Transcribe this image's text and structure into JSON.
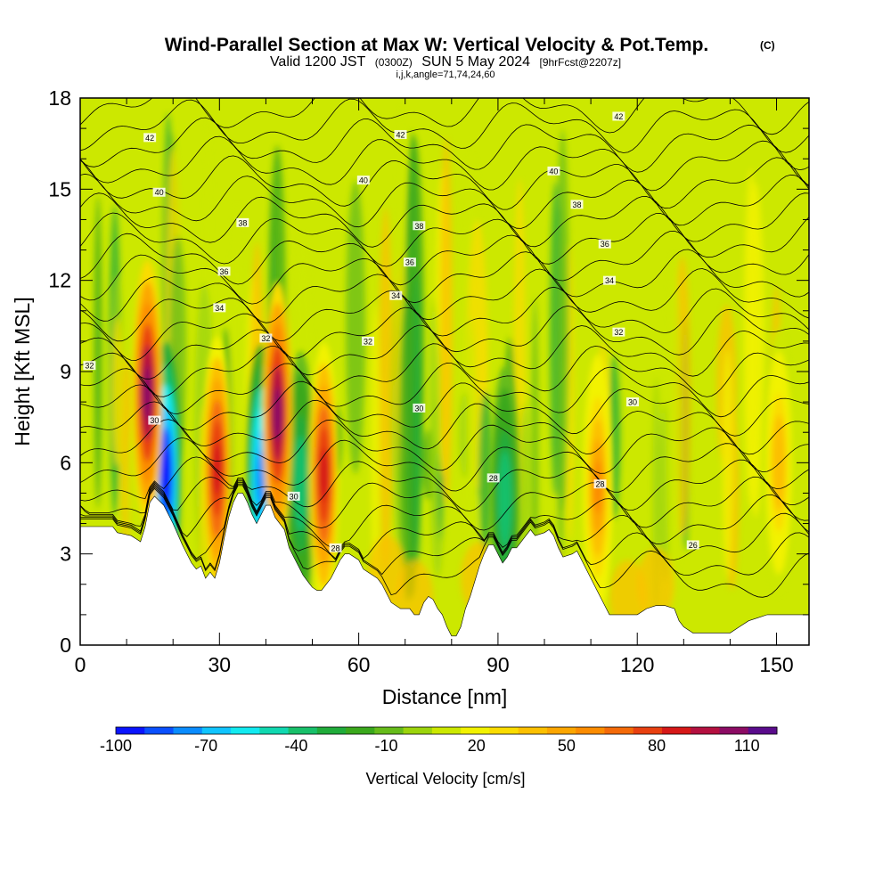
{
  "header": {
    "title": "Wind-Parallel Section at Max W: Vertical Velocity & Pot.Temp.",
    "copyright": "(C)",
    "valid_prefix": "Valid 1200 JST",
    "valid_utc": "(0300Z)",
    "valid_date": "SUN 5 May 2024",
    "forecast": "[9hrFcst@2207z]",
    "indices": "i,j,k,angle=71,74,24,60"
  },
  "chart_data": {
    "type": "heatmap",
    "xlabel": "Distance [nm]",
    "ylabel": "Height [Kft MSL]",
    "xlim": [
      0,
      157
    ],
    "ylim": [
      0,
      18
    ],
    "x_ticks": [
      0,
      30,
      60,
      90,
      120,
      150
    ],
    "y_ticks": [
      0,
      3,
      6,
      9,
      12,
      15,
      18
    ],
    "x_tick_labels": [
      "0",
      "30",
      "60",
      "90",
      "120",
      "150"
    ],
    "y_tick_labels": [
      "0",
      "3",
      "6",
      "9",
      "12",
      "15",
      "18"
    ],
    "colorbar": {
      "title": "Vertical Velocity [cm/s]",
      "min": -100,
      "max": 120,
      "step": 10,
      "tick_labels": [
        "-100",
        "-70",
        "-40",
        "-10",
        "20",
        "50",
        "80",
        "110"
      ],
      "tick_values": [
        -100,
        -70,
        -40,
        -10,
        20,
        50,
        80,
        110
      ],
      "colors": [
        "#0a14ff",
        "#0a50ff",
        "#0a8cff",
        "#10c4ff",
        "#12eaf0",
        "#10d8b0",
        "#18c06a",
        "#20ac3a",
        "#3aa81c",
        "#66bc1a",
        "#9cd40c",
        "#cce800",
        "#f2f200",
        "#fadc00",
        "#fcc000",
        "#fca600",
        "#fc8c00",
        "#f46a08",
        "#e84010",
        "#d61818",
        "#b41040",
        "#8c0c64",
        "#5a0c8c"
      ]
    },
    "terrain": [
      [
        0,
        3.9
      ],
      [
        7,
        3.9
      ],
      [
        8,
        3.7
      ],
      [
        11,
        3.6
      ],
      [
        13,
        3.4
      ],
      [
        14,
        3.9
      ],
      [
        15,
        4.7
      ],
      [
        16,
        4.9
      ],
      [
        18,
        4.6
      ],
      [
        20,
        4.0
      ],
      [
        22,
        3.3
      ],
      [
        24,
        2.7
      ],
      [
        25,
        2.5
      ],
      [
        26,
        2.6
      ],
      [
        27,
        2.2
      ],
      [
        28,
        2.4
      ],
      [
        29,
        2.2
      ],
      [
        30,
        2.7
      ],
      [
        31,
        3.5
      ],
      [
        32,
        4.2
      ],
      [
        33,
        4.7
      ],
      [
        34,
        5.0
      ],
      [
        35,
        5.0
      ],
      [
        36,
        4.7
      ],
      [
        37,
        4.3
      ],
      [
        38,
        4.0
      ],
      [
        40,
        4.6
      ],
      [
        41,
        4.6
      ],
      [
        42,
        4.2
      ],
      [
        44,
        3.8
      ],
      [
        45,
        3.2
      ],
      [
        46,
        2.9
      ],
      [
        47,
        2.6
      ],
      [
        48,
        2.3
      ],
      [
        49,
        2.1
      ],
      [
        50,
        1.9
      ],
      [
        51,
        1.8
      ],
      [
        52,
        1.8
      ],
      [
        53,
        2.0
      ],
      [
        54,
        2.2
      ],
      [
        55,
        2.5
      ],
      [
        56,
        2.8
      ],
      [
        57,
        3.0
      ],
      [
        58,
        3.0
      ],
      [
        60,
        2.8
      ],
      [
        61,
        2.5
      ],
      [
        62,
        2.4
      ],
      [
        64,
        2.2
      ],
      [
        65,
        2.0
      ],
      [
        66,
        1.7
      ],
      [
        67,
        1.4
      ],
      [
        69,
        1.2
      ],
      [
        71,
        1.2
      ],
      [
        72,
        1.0
      ],
      [
        73,
        1.0
      ],
      [
        74,
        1.4
      ],
      [
        75,
        1.6
      ],
      [
        76,
        1.5
      ],
      [
        77,
        1.2
      ],
      [
        78,
        1.0
      ],
      [
        79,
        0.6
      ],
      [
        80,
        0.3
      ],
      [
        81,
        0.3
      ],
      [
        82,
        0.6
      ],
      [
        83,
        1.2
      ],
      [
        84,
        1.6
      ],
      [
        85,
        2.1
      ],
      [
        86,
        2.6
      ],
      [
        87,
        3.0
      ],
      [
        88,
        3.3
      ],
      [
        89,
        3.3
      ],
      [
        90,
        3.0
      ],
      [
        91,
        2.7
      ],
      [
        92,
        2.9
      ],
      [
        93,
        3.2
      ],
      [
        94,
        3.2
      ],
      [
        96,
        3.6
      ],
      [
        97,
        3.8
      ],
      [
        98,
        3.6
      ],
      [
        100,
        3.7
      ],
      [
        101,
        3.8
      ],
      [
        102,
        3.6
      ],
      [
        103,
        3.2
      ],
      [
        104,
        2.9
      ],
      [
        106,
        3.0
      ],
      [
        107,
        3.1
      ],
      [
        108,
        2.8
      ],
      [
        109,
        2.5
      ],
      [
        110,
        2.2
      ],
      [
        111,
        1.9
      ],
      [
        112,
        1.6
      ],
      [
        113,
        1.3
      ],
      [
        114,
        1.0
      ],
      [
        115,
        1.0
      ],
      [
        116,
        1.0
      ],
      [
        118,
        1.0
      ],
      [
        120,
        1.0
      ],
      [
        122,
        1.2
      ],
      [
        124,
        1.3
      ],
      [
        126,
        1.3
      ],
      [
        128,
        1.2
      ],
      [
        129,
        0.8
      ],
      [
        130,
        0.6
      ],
      [
        132,
        0.4
      ],
      [
        136,
        0.4
      ],
      [
        140,
        0.4
      ],
      [
        142,
        0.6
      ],
      [
        144,
        0.8
      ],
      [
        146,
        0.9
      ],
      [
        148,
        1.0
      ],
      [
        152,
        1.0
      ],
      [
        157,
        1.0
      ]
    ],
    "updraft_cores": [
      {
        "x": 14.5,
        "z": 8.3,
        "w": 110
      },
      {
        "x": 29.5,
        "z": 5.8,
        "w": 90
      },
      {
        "x": 42.5,
        "z": 7.6,
        "w": 110
      },
      {
        "x": 52.5,
        "z": 5.6,
        "w": 90
      },
      {
        "x": 111.5,
        "z": 5.2,
        "w": 60
      },
      {
        "x": 150.5,
        "z": 6.0,
        "w": 40
      }
    ],
    "downdraft_cores": [
      {
        "x": 18.5,
        "z": 5.6,
        "w": -100
      },
      {
        "x": 39.0,
        "z": 5.5,
        "w": -80
      },
      {
        "x": 47.5,
        "z": 5.3,
        "w": -40
      },
      {
        "x": 91.5,
        "z": 4.8,
        "w": -40
      }
    ],
    "isentrope_labels": [
      {
        "text": "42",
        "x": 15,
        "z": 16.7
      },
      {
        "text": "40",
        "x": 17,
        "z": 14.9
      },
      {
        "text": "38",
        "x": 35,
        "z": 13.9
      },
      {
        "text": "36",
        "x": 31,
        "z": 12.3
      },
      {
        "text": "34",
        "x": 30,
        "z": 11.1
      },
      {
        "text": "32",
        "x": 40,
        "z": 10.1
      },
      {
        "text": "32",
        "x": 2,
        "z": 9.2
      },
      {
        "text": "30",
        "x": 16,
        "z": 7.4
      },
      {
        "text": "30",
        "x": 46,
        "z": 4.9
      },
      {
        "text": "28",
        "x": 55,
        "z": 3.2
      },
      {
        "text": "42",
        "x": 69,
        "z": 16.8
      },
      {
        "text": "40",
        "x": 61,
        "z": 15.3
      },
      {
        "text": "38",
        "x": 73,
        "z": 13.8
      },
      {
        "text": "36",
        "x": 71,
        "z": 12.6
      },
      {
        "text": "34",
        "x": 68,
        "z": 11.5
      },
      {
        "text": "32",
        "x": 62,
        "z": 10.0
      },
      {
        "text": "30",
        "x": 73,
        "z": 7.8
      },
      {
        "text": "28",
        "x": 89,
        "z": 5.5
      },
      {
        "text": "28",
        "x": 112,
        "z": 5.3
      },
      {
        "text": "26",
        "x": 132,
        "z": 3.3
      },
      {
        "text": "42",
        "x": 116,
        "z": 17.4
      },
      {
        "text": "40",
        "x": 102,
        "z": 15.6
      },
      {
        "text": "38",
        "x": 107,
        "z": 14.5
      },
      {
        "text": "36",
        "x": 113,
        "z": 13.2
      },
      {
        "text": "34",
        "x": 114,
        "z": 12.0
      },
      {
        "text": "32",
        "x": 116,
        "z": 10.3
      },
      {
        "text": "30",
        "x": 119,
        "z": 8.0
      }
    ]
  }
}
